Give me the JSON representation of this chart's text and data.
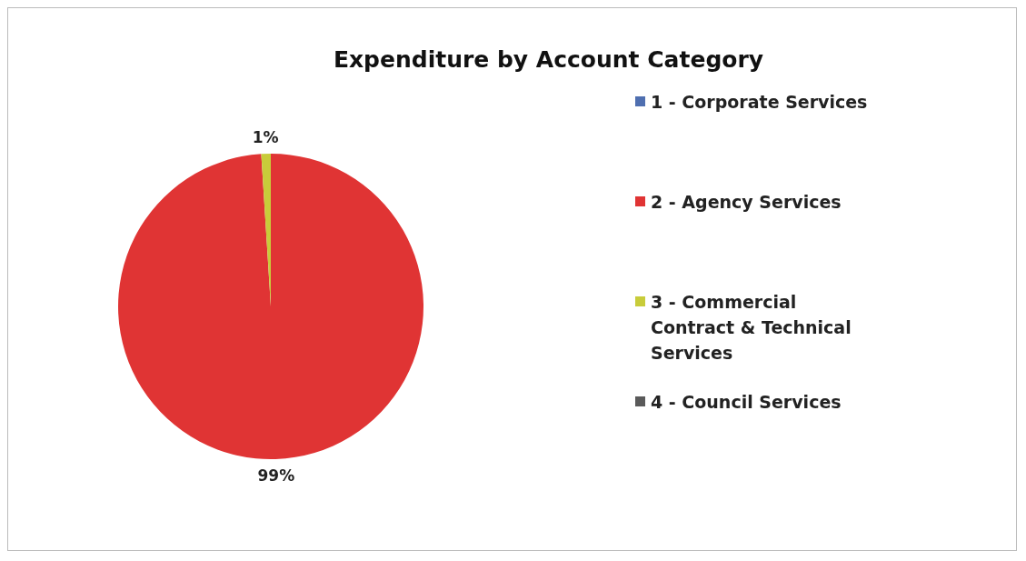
{
  "chart_data": {
    "type": "pie",
    "title": "Expenditure by Account Category",
    "categories": [
      "1 - Corporate Services",
      "2 - Agency Services",
      "3 - Commercial Contract & Technical Services",
      "4 - Council Services"
    ],
    "values": [
      0,
      99,
      1,
      0
    ],
    "colors": [
      "#4f6fb0",
      "#e03434",
      "#c8cc3a",
      "#5a5a5a"
    ],
    "value_labels": [
      null,
      "99%",
      "1%",
      null
    ],
    "legend": "right"
  }
}
